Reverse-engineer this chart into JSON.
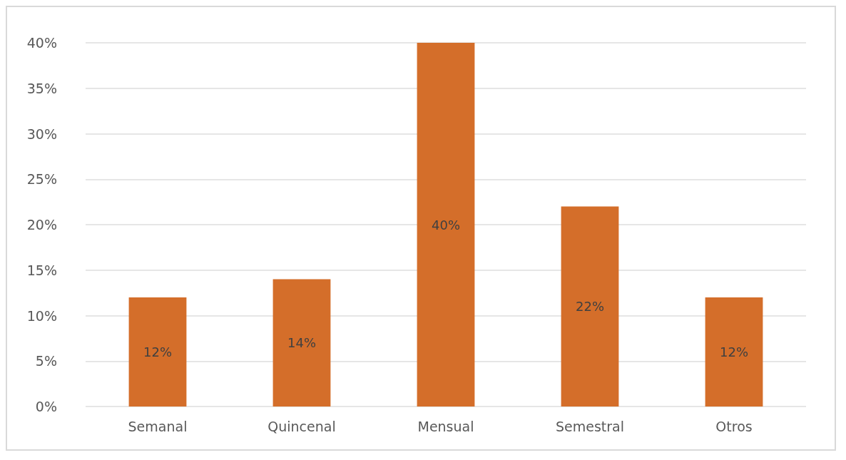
{
  "chart_data": {
    "type": "bar",
    "categories": [
      "Semanal",
      "Quincenal",
      "Mensual",
      "Semestral",
      "Otros"
    ],
    "values": [
      12,
      14,
      40,
      22,
      12
    ],
    "color": "#d46e2a",
    "ylim": [
      0,
      40
    ],
    "yticks": [
      {
        "value": 0,
        "label": "0%"
      },
      {
        "value": 5,
        "label": "5%"
      },
      {
        "value": 10,
        "label": "10%"
      },
      {
        "value": 15,
        "label": "15%"
      },
      {
        "value": 20,
        "label": "20%"
      },
      {
        "value": 25,
        "label": "25%"
      },
      {
        "value": 30,
        "label": "30%"
      },
      {
        "value": 35,
        "label": "35%"
      },
      {
        "value": 40,
        "label": "40%"
      }
    ],
    "grid": true,
    "value_labels": [
      "12%",
      "14%",
      "40%",
      "22%",
      "12%"
    ]
  }
}
